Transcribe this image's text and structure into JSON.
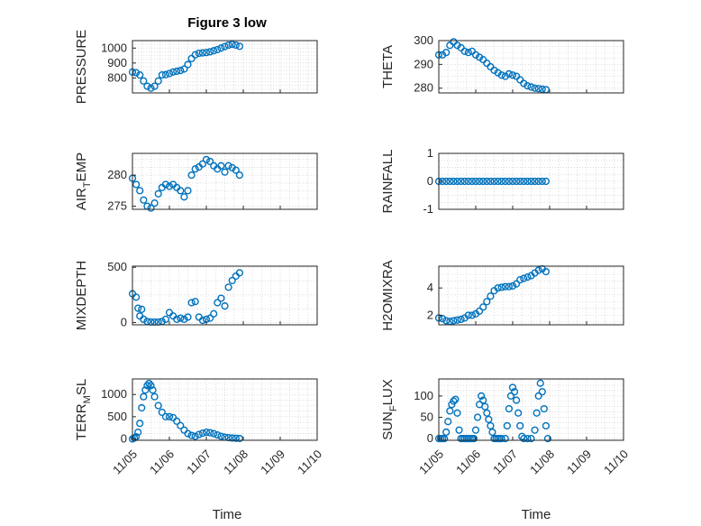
{
  "figure": {
    "title": "Figure 3 low"
  },
  "colors": {
    "marker": "#0072BD",
    "axis": "#262626",
    "grid": "#d0d0d0"
  },
  "chart_data": [
    {
      "type": "scatter",
      "name": "PRESSURE",
      "ylabel_main": "PRESSURE",
      "ylabel_sub": "",
      "ylim": [
        700,
        1050
      ],
      "yticks": [
        "800",
        "900",
        "1000"
      ],
      "ytick_values": [
        800,
        900,
        1000
      ],
      "xlim": [
        0,
        5
      ],
      "grid": true,
      "points": [
        [
          0.0,
          840
        ],
        [
          0.1,
          835
        ],
        [
          0.2,
          820
        ],
        [
          0.3,
          780
        ],
        [
          0.4,
          745
        ],
        [
          0.5,
          732
        ],
        [
          0.6,
          745
        ],
        [
          0.7,
          780
        ],
        [
          0.8,
          820
        ],
        [
          0.9,
          822
        ],
        [
          1.0,
          830
        ],
        [
          1.1,
          840
        ],
        [
          1.2,
          845
        ],
        [
          1.3,
          850
        ],
        [
          1.4,
          860
        ],
        [
          1.5,
          890
        ],
        [
          1.6,
          930
        ],
        [
          1.7,
          955
        ],
        [
          1.8,
          965
        ],
        [
          1.9,
          968
        ],
        [
          2.0,
          970
        ],
        [
          2.1,
          975
        ],
        [
          2.2,
          982
        ],
        [
          2.3,
          990
        ],
        [
          2.4,
          1000
        ],
        [
          2.5,
          1010
        ],
        [
          2.6,
          1020
        ],
        [
          2.7,
          1025
        ],
        [
          2.8,
          1020
        ],
        [
          2.9,
          1012
        ]
      ]
    },
    {
      "type": "scatter",
      "name": "THETA",
      "ylabel_main": "THETA",
      "ylabel_sub": "",
      "ylim": [
        278,
        300
      ],
      "yticks": [
        "280",
        "290",
        "300"
      ],
      "ytick_values": [
        280,
        290,
        300
      ],
      "xlim": [
        0,
        5
      ],
      "grid": true,
      "points": [
        [
          0.0,
          294
        ],
        [
          0.1,
          294
        ],
        [
          0.2,
          295
        ],
        [
          0.3,
          298
        ],
        [
          0.4,
          299.5
        ],
        [
          0.5,
          298
        ],
        [
          0.6,
          297
        ],
        [
          0.7,
          295.5
        ],
        [
          0.8,
          295
        ],
        [
          0.9,
          295.5
        ],
        [
          1.0,
          294
        ],
        [
          1.1,
          293
        ],
        [
          1.2,
          292
        ],
        [
          1.3,
          290.5
        ],
        [
          1.4,
          289
        ],
        [
          1.5,
          287.5
        ],
        [
          1.6,
          286.5
        ],
        [
          1.7,
          285.5
        ],
        [
          1.8,
          285
        ],
        [
          1.9,
          286
        ],
        [
          2.0,
          285.5
        ],
        [
          2.1,
          285
        ],
        [
          2.2,
          283.5
        ],
        [
          2.3,
          282
        ],
        [
          2.4,
          281
        ],
        [
          2.5,
          280.5
        ],
        [
          2.6,
          280
        ],
        [
          2.7,
          279.8
        ],
        [
          2.8,
          279.6
        ],
        [
          2.9,
          279.4
        ]
      ]
    },
    {
      "type": "scatter",
      "name": "AIR_TEMP",
      "ylabel_main": "AIR",
      "ylabel_sub": "T",
      "ylabel_rest": "EMP",
      "ylim": [
        274.5,
        283.5
      ],
      "yticks": [
        "275",
        "280"
      ],
      "ytick_values": [
        275,
        280
      ],
      "xlim": [
        0,
        5
      ],
      "grid": true,
      "points": [
        [
          0.0,
          279.5
        ],
        [
          0.1,
          278.5
        ],
        [
          0.2,
          277.5
        ],
        [
          0.3,
          276
        ],
        [
          0.4,
          275
        ],
        [
          0.5,
          274.7
        ],
        [
          0.6,
          275.5
        ],
        [
          0.7,
          277
        ],
        [
          0.8,
          278
        ],
        [
          0.9,
          278.5
        ],
        [
          1.0,
          278.2
        ],
        [
          1.1,
          278.5
        ],
        [
          1.2,
          278
        ],
        [
          1.3,
          277.5
        ],
        [
          1.4,
          276.5
        ],
        [
          1.5,
          277.5
        ],
        [
          1.6,
          280
        ],
        [
          1.7,
          281
        ],
        [
          1.8,
          281.3
        ],
        [
          1.9,
          281.8
        ],
        [
          2.0,
          282.5
        ],
        [
          2.1,
          282.2
        ],
        [
          2.2,
          281.5
        ],
        [
          2.3,
          281
        ],
        [
          2.4,
          281.5
        ],
        [
          2.5,
          280.5
        ],
        [
          2.6,
          281.5
        ],
        [
          2.7,
          281.2
        ],
        [
          2.8,
          280.8
        ],
        [
          2.9,
          280
        ]
      ]
    },
    {
      "type": "scatter",
      "name": "RAINFALL",
      "ylabel_main": "RAINFALL",
      "ylabel_sub": "",
      "ylim": [
        -1,
        1
      ],
      "yticks": [
        "-1",
        "0",
        "1"
      ],
      "ytick_values": [
        -1,
        0,
        1
      ],
      "xlim": [
        0,
        5
      ],
      "grid": true,
      "points": [
        [
          0.0,
          0
        ],
        [
          0.1,
          0
        ],
        [
          0.2,
          0
        ],
        [
          0.3,
          0
        ],
        [
          0.4,
          0
        ],
        [
          0.5,
          0
        ],
        [
          0.6,
          0
        ],
        [
          0.7,
          0
        ],
        [
          0.8,
          0
        ],
        [
          0.9,
          0
        ],
        [
          1.0,
          0
        ],
        [
          1.1,
          0
        ],
        [
          1.2,
          0
        ],
        [
          1.3,
          0
        ],
        [
          1.4,
          0
        ],
        [
          1.5,
          0
        ],
        [
          1.6,
          0
        ],
        [
          1.7,
          0
        ],
        [
          1.8,
          0
        ],
        [
          1.9,
          0
        ],
        [
          2.0,
          0
        ],
        [
          2.1,
          0
        ],
        [
          2.2,
          0
        ],
        [
          2.3,
          0
        ],
        [
          2.4,
          0
        ],
        [
          2.5,
          0
        ],
        [
          2.6,
          0
        ],
        [
          2.7,
          0
        ],
        [
          2.8,
          0
        ],
        [
          2.9,
          0
        ]
      ]
    },
    {
      "type": "scatter",
      "name": "MIXDEPTH",
      "ylabel_main": "MIXDEPTH",
      "ylabel_sub": "",
      "ylim": [
        -20,
        510
      ],
      "yticks": [
        "0",
        "500"
      ],
      "ytick_values": [
        0,
        500
      ],
      "xlim": [
        0,
        5
      ],
      "grid": true,
      "points": [
        [
          0.0,
          260
        ],
        [
          0.1,
          230
        ],
        [
          0.15,
          130
        ],
        [
          0.2,
          60
        ],
        [
          0.25,
          120
        ],
        [
          0.3,
          30
        ],
        [
          0.4,
          10
        ],
        [
          0.5,
          5
        ],
        [
          0.6,
          5
        ],
        [
          0.7,
          5
        ],
        [
          0.8,
          10
        ],
        [
          0.9,
          30
        ],
        [
          1.0,
          90
        ],
        [
          1.1,
          60
        ],
        [
          1.2,
          30
        ],
        [
          1.3,
          40
        ],
        [
          1.4,
          30
        ],
        [
          1.5,
          50
        ],
        [
          1.6,
          180
        ],
        [
          1.7,
          190
        ],
        [
          1.8,
          50
        ],
        [
          1.9,
          20
        ],
        [
          2.0,
          30
        ],
        [
          2.1,
          40
        ],
        [
          2.2,
          80
        ],
        [
          2.3,
          180
        ],
        [
          2.4,
          220
        ],
        [
          2.5,
          150
        ],
        [
          2.6,
          320
        ],
        [
          2.7,
          380
        ],
        [
          2.8,
          420
        ],
        [
          2.9,
          450
        ]
      ]
    },
    {
      "type": "scatter",
      "name": "H2OMIXRA",
      "ylabel_main": "H2OMIXRA",
      "ylabel_sub": "",
      "ylim": [
        1.3,
        5.6
      ],
      "yticks": [
        "2",
        "4"
      ],
      "ytick_values": [
        2,
        4
      ],
      "xlim": [
        0,
        5
      ],
      "grid": true,
      "points": [
        [
          0.0,
          1.8
        ],
        [
          0.1,
          1.75
        ],
        [
          0.2,
          1.6
        ],
        [
          0.3,
          1.55
        ],
        [
          0.4,
          1.6
        ],
        [
          0.5,
          1.65
        ],
        [
          0.6,
          1.7
        ],
        [
          0.7,
          1.8
        ],
        [
          0.8,
          2.0
        ],
        [
          0.9,
          2.0
        ],
        [
          1.0,
          2.1
        ],
        [
          1.1,
          2.3
        ],
        [
          1.2,
          2.6
        ],
        [
          1.3,
          3.0
        ],
        [
          1.4,
          3.4
        ],
        [
          1.5,
          3.8
        ],
        [
          1.6,
          4.0
        ],
        [
          1.7,
          4.05
        ],
        [
          1.8,
          4.1
        ],
        [
          1.9,
          4.1
        ],
        [
          2.0,
          4.15
        ],
        [
          2.1,
          4.3
        ],
        [
          2.2,
          4.6
        ],
        [
          2.3,
          4.7
        ],
        [
          2.4,
          4.8
        ],
        [
          2.5,
          4.9
        ],
        [
          2.6,
          5.1
        ],
        [
          2.7,
          5.3
        ],
        [
          2.8,
          5.4
        ],
        [
          2.9,
          5.2
        ]
      ]
    },
    {
      "type": "scatter",
      "name": "TERR_MSL",
      "ylabel_main": "TERR",
      "ylabel_sub": "M",
      "ylabel_rest": "SL",
      "ylim": [
        -30,
        1350
      ],
      "yticks": [
        "0",
        "500",
        "1000"
      ],
      "ytick_values": [
        0,
        500,
        1000
      ],
      "xlim": [
        0,
        5
      ],
      "grid": true,
      "points": [
        [
          0.0,
          0
        ],
        [
          0.05,
          20
        ],
        [
          0.1,
          50
        ],
        [
          0.15,
          150
        ],
        [
          0.2,
          350
        ],
        [
          0.25,
          700
        ],
        [
          0.3,
          950
        ],
        [
          0.35,
          1100
        ],
        [
          0.4,
          1200
        ],
        [
          0.45,
          1250
        ],
        [
          0.5,
          1200
        ],
        [
          0.55,
          1100
        ],
        [
          0.6,
          950
        ],
        [
          0.7,
          750
        ],
        [
          0.8,
          600
        ],
        [
          0.9,
          500
        ],
        [
          1.0,
          500
        ],
        [
          1.1,
          480
        ],
        [
          1.2,
          400
        ],
        [
          1.3,
          300
        ],
        [
          1.4,
          200
        ],
        [
          1.5,
          120
        ],
        [
          1.6,
          80
        ],
        [
          1.7,
          60
        ],
        [
          1.8,
          100
        ],
        [
          1.9,
          130
        ],
        [
          2.0,
          150
        ],
        [
          2.1,
          140
        ],
        [
          2.2,
          120
        ],
        [
          2.3,
          90
        ],
        [
          2.4,
          60
        ],
        [
          2.5,
          40
        ],
        [
          2.6,
          30
        ],
        [
          2.7,
          20
        ],
        [
          2.8,
          15
        ],
        [
          2.9,
          10
        ]
      ]
    },
    {
      "type": "scatter",
      "name": "SUN_FLUX",
      "ylabel_main": "SUN",
      "ylabel_sub": "F",
      "ylabel_rest": "LUX",
      "ylim": [
        -4,
        140
      ],
      "yticks": [
        "0",
        "50",
        "100"
      ],
      "ytick_values": [
        0,
        50,
        100
      ],
      "xlim": [
        0,
        5
      ],
      "grid": true,
      "points": [
        [
          0.0,
          0
        ],
        [
          0.05,
          0
        ],
        [
          0.1,
          0
        ],
        [
          0.15,
          0
        ],
        [
          0.2,
          15
        ],
        [
          0.25,
          40
        ],
        [
          0.3,
          65
        ],
        [
          0.35,
          80
        ],
        [
          0.4,
          88
        ],
        [
          0.45,
          92
        ],
        [
          0.5,
          60
        ],
        [
          0.55,
          20
        ],
        [
          0.6,
          0
        ],
        [
          0.65,
          0
        ],
        [
          0.7,
          0
        ],
        [
          0.75,
          0
        ],
        [
          0.8,
          0
        ],
        [
          0.85,
          0
        ],
        [
          0.9,
          0
        ],
        [
          0.95,
          0
        ],
        [
          1.0,
          20
        ],
        [
          1.05,
          50
        ],
        [
          1.1,
          80
        ],
        [
          1.15,
          100
        ],
        [
          1.2,
          90
        ],
        [
          1.25,
          75
        ],
        [
          1.3,
          60
        ],
        [
          1.35,
          45
        ],
        [
          1.4,
          30
        ],
        [
          1.45,
          15
        ],
        [
          1.5,
          0
        ],
        [
          1.55,
          0
        ],
        [
          1.6,
          0
        ],
        [
          1.65,
          0
        ],
        [
          1.7,
          0
        ],
        [
          1.8,
          0
        ],
        [
          1.85,
          30
        ],
        [
          1.9,
          70
        ],
        [
          1.95,
          100
        ],
        [
          2.0,
          120
        ],
        [
          2.05,
          110
        ],
        [
          2.1,
          90
        ],
        [
          2.15,
          60
        ],
        [
          2.2,
          30
        ],
        [
          2.25,
          5
        ],
        [
          2.3,
          0
        ],
        [
          2.4,
          0
        ],
        [
          2.5,
          0
        ],
        [
          2.6,
          20
        ],
        [
          2.65,
          60
        ],
        [
          2.7,
          100
        ],
        [
          2.75,
          130
        ],
        [
          2.8,
          110
        ],
        [
          2.85,
          70
        ],
        [
          2.9,
          30
        ],
        [
          2.95,
          0
        ]
      ]
    }
  ],
  "x_axis": {
    "ticks": [
      "11/05",
      "11/06",
      "11/07",
      "11/08",
      "11/09",
      "11/10"
    ],
    "tick_values": [
      0,
      1,
      2,
      3,
      4,
      5
    ],
    "label": "Time"
  }
}
